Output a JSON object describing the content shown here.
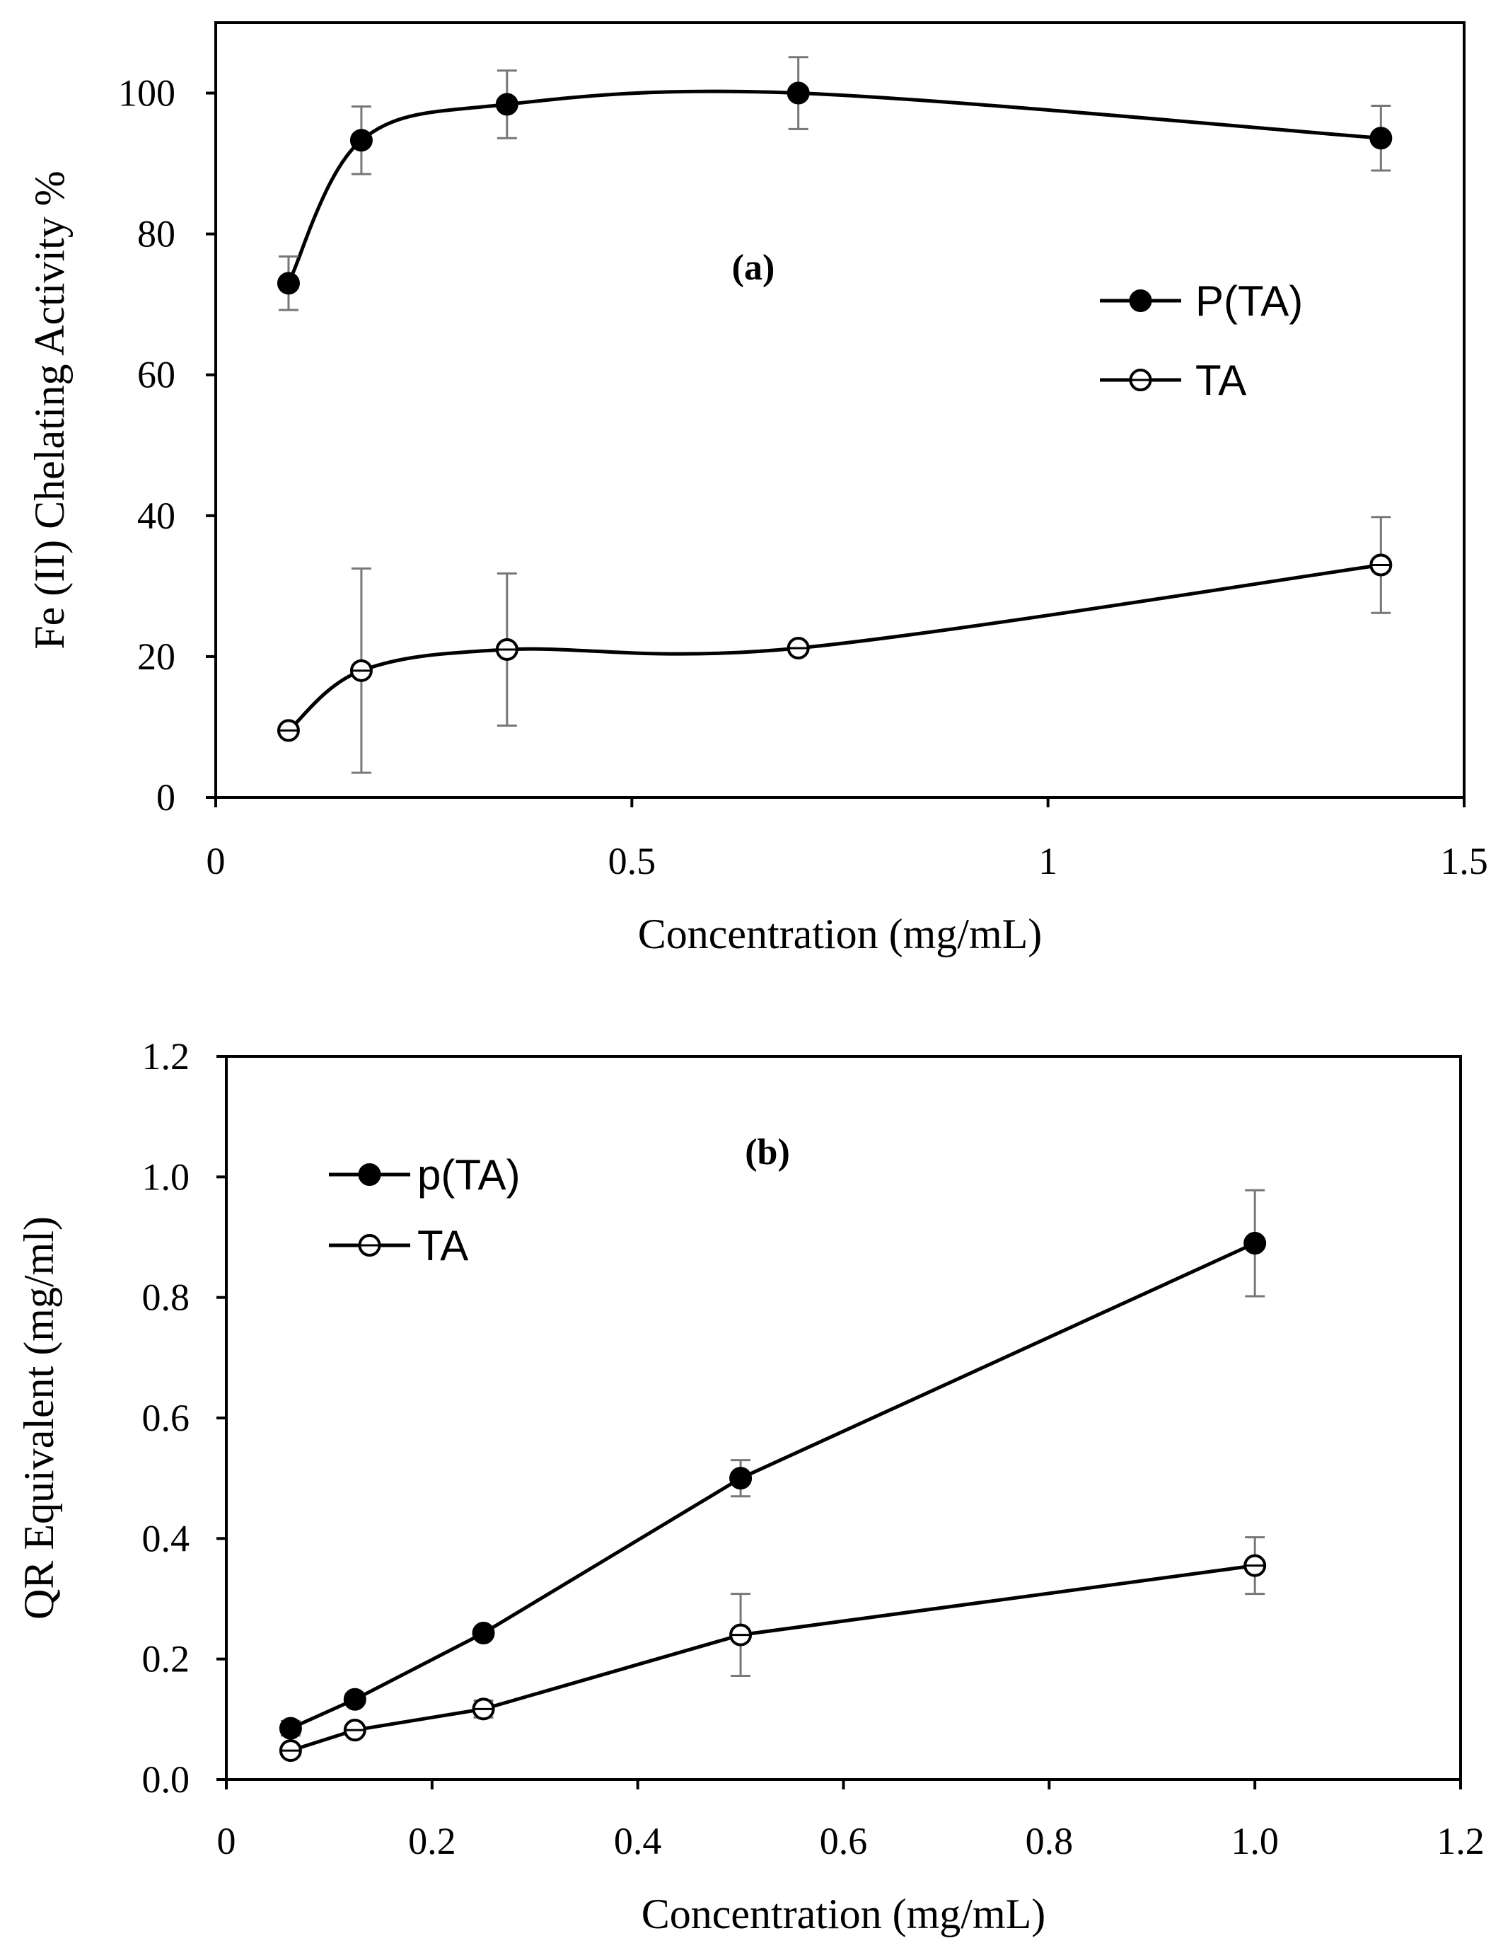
{
  "chart_data": [
    {
      "type": "line",
      "panel_label": "(a)",
      "xlabel": "Concentration (mg/mL)",
      "ylabel": "Fe (II) Chelating Activity %",
      "xlim": [
        0,
        1.5
      ],
      "ylim": [
        0,
        110
      ],
      "xticks": [
        0,
        0.5,
        1,
        1.5
      ],
      "xtick_labels": [
        "0",
        "0.5",
        "1",
        "1.5"
      ],
      "yticks": [
        0,
        20,
        40,
        60,
        80,
        100
      ],
      "ytick_labels": [
        "0",
        "20",
        "40",
        "60",
        "80",
        "100"
      ],
      "smooth": true,
      "legend_position": "right-middle",
      "series": [
        {
          "name": "P(TA)",
          "marker": "filled-circle",
          "x": [
            0.0875,
            0.175,
            0.35,
            0.7,
            1.4
          ],
          "y": [
            73,
            93.3,
            98.4,
            100,
            93.6
          ],
          "error": [
            3.8,
            4.8,
            4.8,
            5.1,
            4.6
          ]
        },
        {
          "name": "TA",
          "marker": "open-circle",
          "x": [
            0.0875,
            0.175,
            0.35,
            0.7,
            1.4
          ],
          "y": [
            9.5,
            18,
            21,
            21.2,
            33
          ],
          "error": [
            0,
            14.5,
            10.8,
            0,
            6.8
          ]
        }
      ]
    },
    {
      "type": "line",
      "panel_label": "(b)",
      "xlabel": "Concentration (mg/mL)",
      "ylabel": "QR Equivalent (mg/ml)",
      "xlim": [
        0,
        1.2
      ],
      "ylim": [
        0,
        1.2
      ],
      "xticks": [
        0,
        0.2,
        0.4,
        0.6,
        0.8,
        1.0,
        1.2
      ],
      "xtick_labels": [
        "0",
        "0.2",
        "0.4",
        "0.6",
        "0.8",
        "1.0",
        "1.2"
      ],
      "yticks": [
        0,
        0.2,
        0.4,
        0.6,
        0.8,
        1.0,
        1.2
      ],
      "ytick_labels": [
        "0.0",
        "0.2",
        "0.4",
        "0.6",
        "0.8",
        "1.0",
        "1.2"
      ],
      "smooth": false,
      "legend_position": "top-left",
      "series": [
        {
          "name": "p(TA)",
          "marker": "filled-circle",
          "x": [
            0.0625,
            0.125,
            0.25,
            0.5,
            1.0
          ],
          "y": [
            0.085,
            0.133,
            0.243,
            0.5,
            0.89
          ],
          "error": [
            0.012,
            0,
            0,
            0.03,
            0.088
          ]
        },
        {
          "name": "TA",
          "marker": "open-circle",
          "x": [
            0.0625,
            0.125,
            0.25,
            0.5,
            1.0
          ],
          "y": [
            0.048,
            0.082,
            0.117,
            0.24,
            0.355
          ],
          "error": [
            0,
            0,
            0.014,
            0.068,
            0.047
          ]
        }
      ]
    }
  ]
}
